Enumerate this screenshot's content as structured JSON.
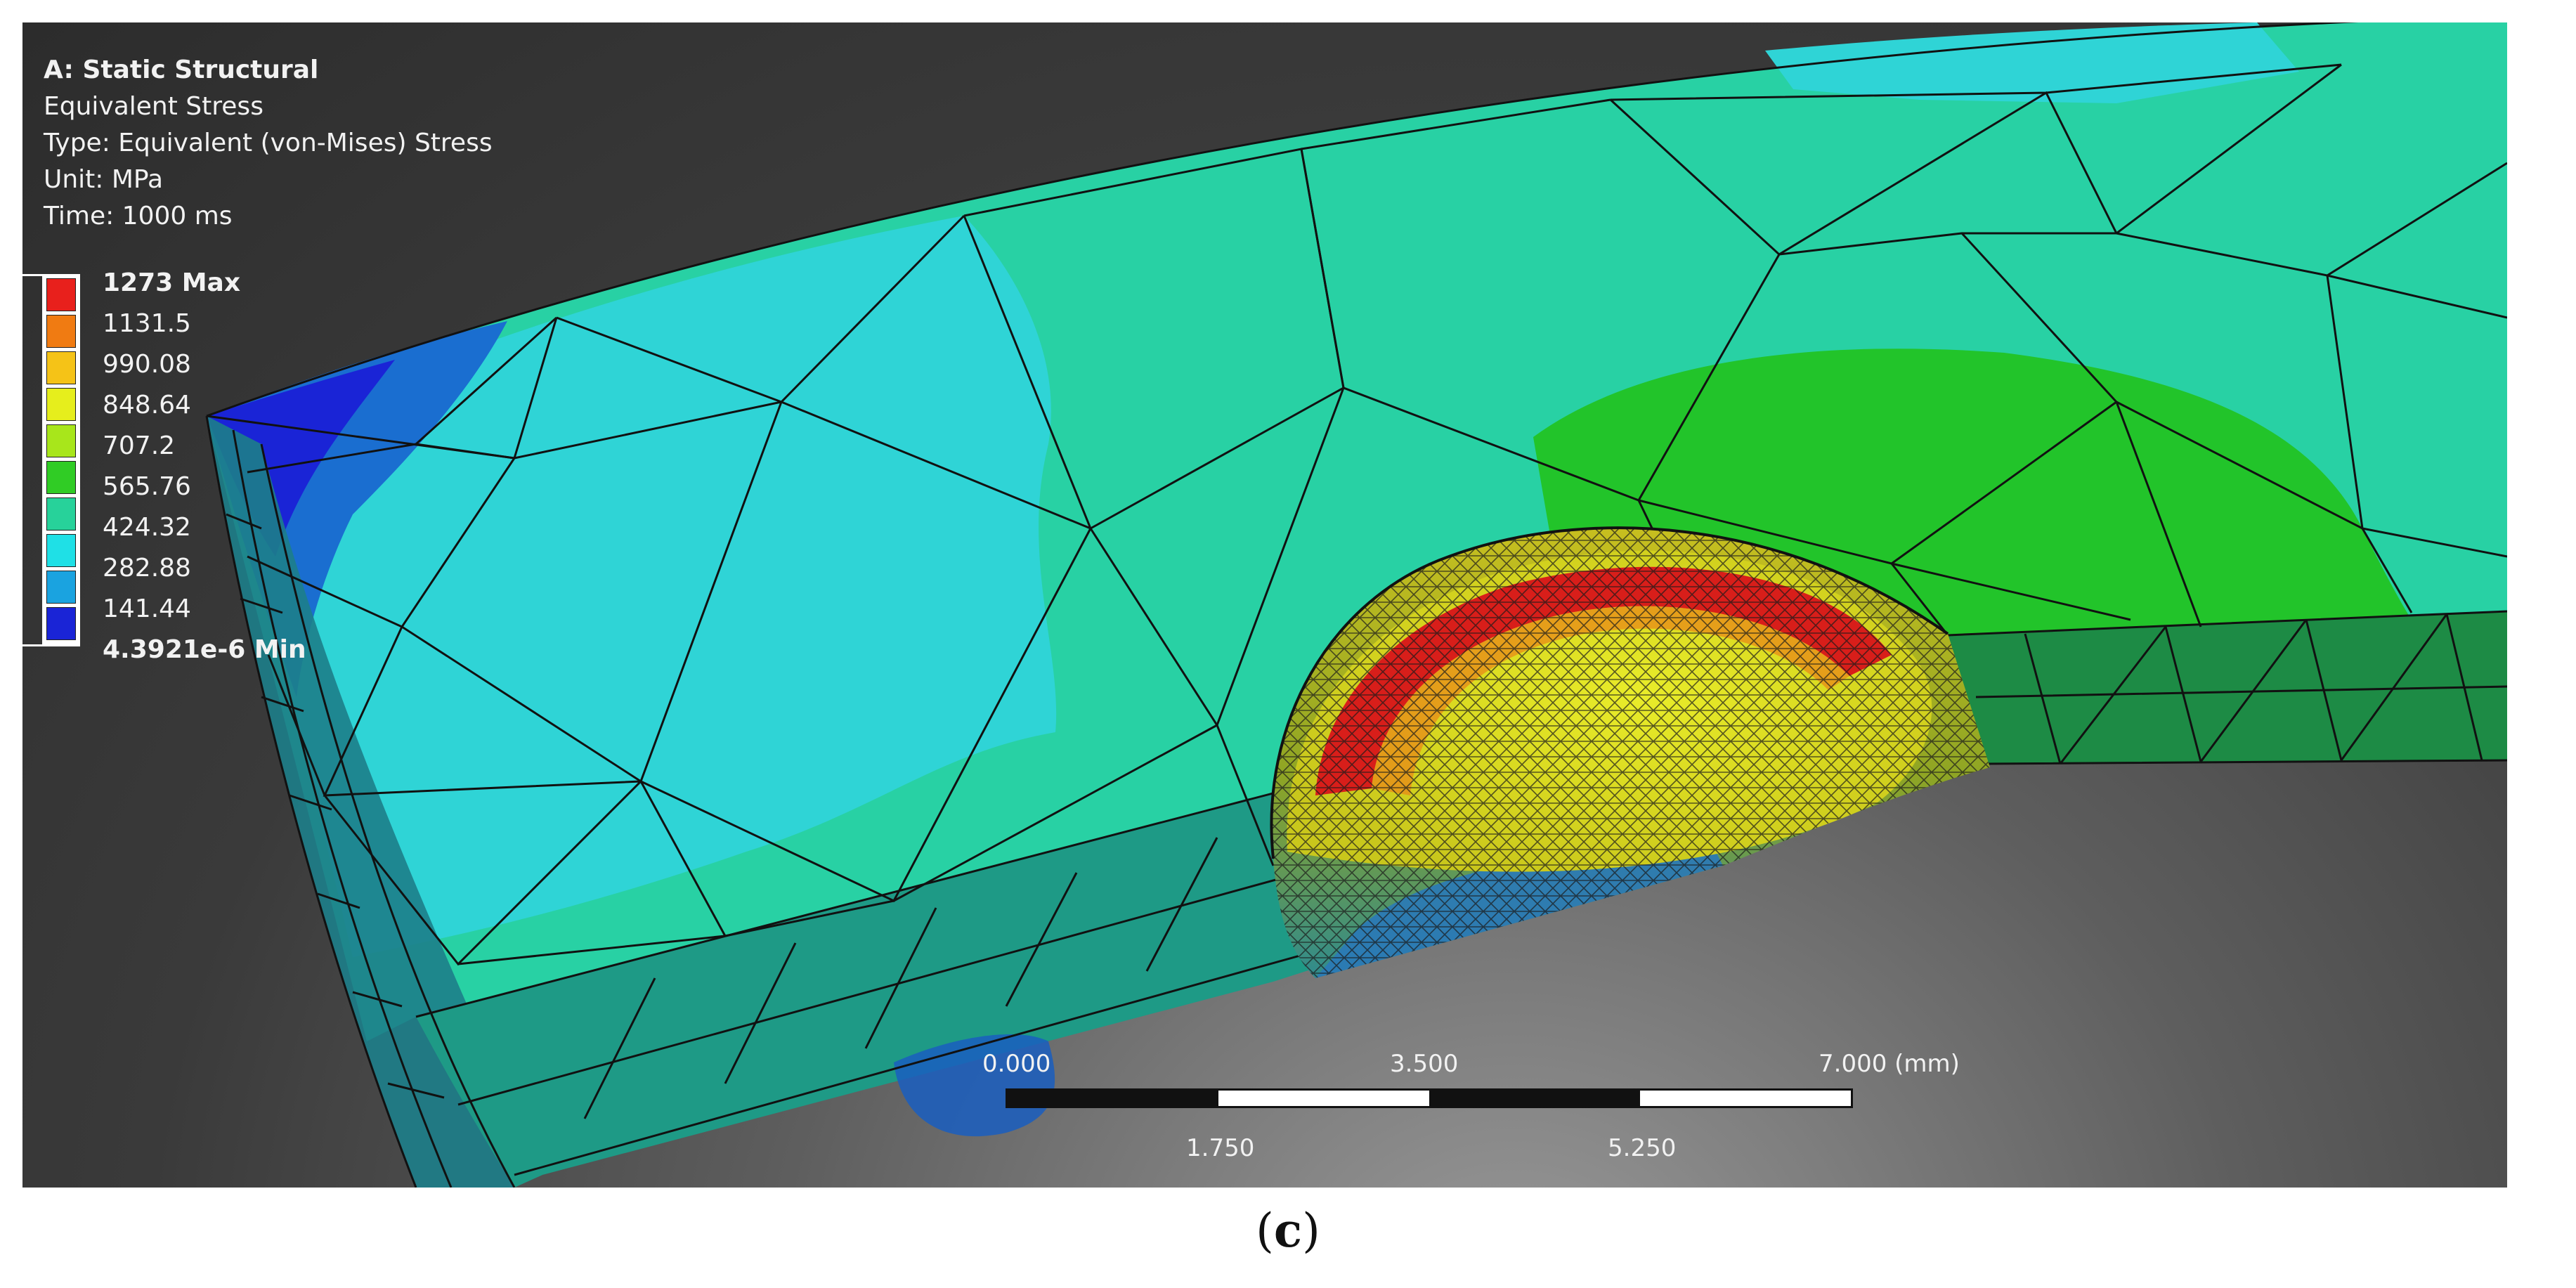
{
  "info": {
    "title": "A: Static Structural",
    "result": "Equivalent Stress",
    "type": "Type: Equivalent (von-Mises) Stress",
    "unit": "Unit: MPa",
    "time": "Time: 1000 ms"
  },
  "legend": {
    "labels": [
      "1273 Max",
      "1131.5",
      "990.08",
      "848.64",
      "707.2",
      "565.76",
      "424.32",
      "282.88",
      "141.44",
      "4.3921e-6 Min"
    ],
    "colors": [
      "#e8201c",
      "#f07b12",
      "#f5c317",
      "#e6ee1c",
      "#a8e61b",
      "#30cc25",
      "#27d29a",
      "#1fe0e6",
      "#1aa3e0",
      "#1a24d6"
    ]
  },
  "scale_bar": {
    "top_labels": [
      "0.000",
      "3.500",
      "7.000 (mm)"
    ],
    "bottom_labels": [
      "1.750",
      "5.250"
    ]
  },
  "caption": {
    "open": "(",
    "letter": "c",
    "close": ")"
  },
  "colors": {
    "background_dark": "#2c2c2c",
    "mesh_line": "#111111",
    "blue_region": "#1420c8",
    "cyan_region": "#2dd2d2",
    "teal_region": "#2fd49a",
    "green_region": "#22c21e",
    "red_region": "#d81e1a",
    "yellow_region": "#d8d820"
  }
}
